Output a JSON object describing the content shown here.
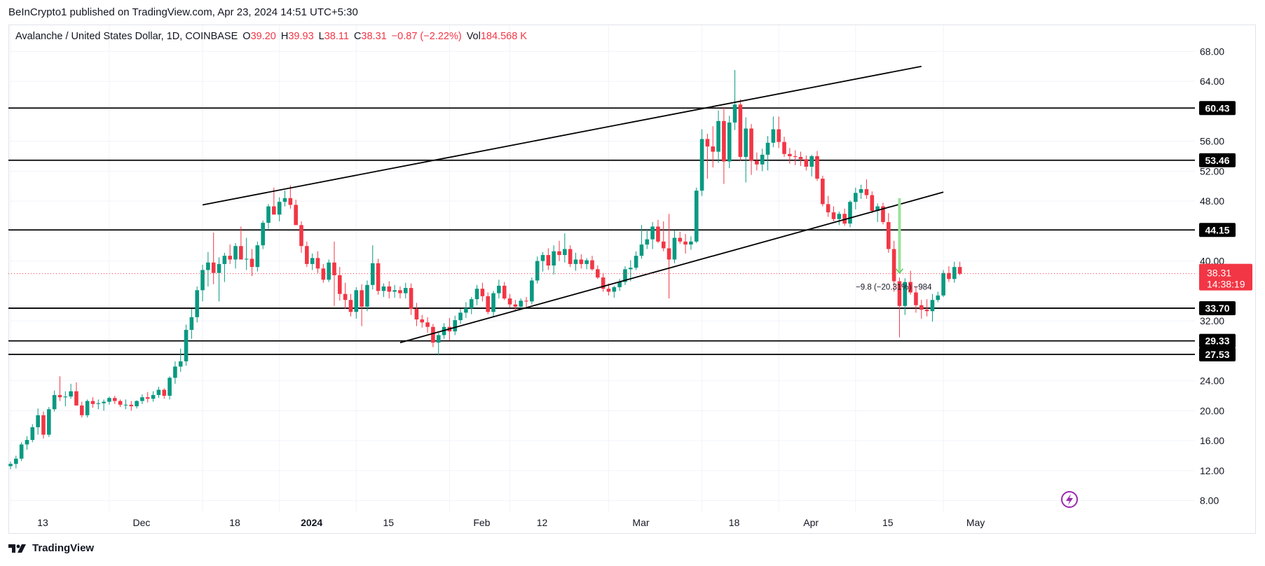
{
  "header": {
    "published": "BeInCrypto1 published on TradingView.com, Apr 23, 2024 14:51 UTC+5:30"
  },
  "legend": {
    "symbol": "Avalanche / United States Dollar, 1D, COINBASE",
    "o_label": "O",
    "o_value": "39.20",
    "h_label": "H",
    "h_value": "39.93",
    "l_label": "L",
    "l_value": "38.11",
    "c_label": "C",
    "c_value": "38.31",
    "change": "−0.87 (−2.22%)",
    "vol_label": "Vol",
    "vol_value": "184.568 K"
  },
  "footer": {
    "brand": "TradingView"
  },
  "colors": {
    "up": "#089981",
    "down": "#f23645",
    "grid": "#f0f3fa",
    "level": "#000000",
    "price_line": "#f23645",
    "measure": "#9be39b",
    "icon": "#9c27b0"
  },
  "chart_data": {
    "type": "candlestick",
    "title": "Avalanche / United States Dollar, 1D, COINBASE",
    "ylim": [
      6,
      70
    ],
    "y_ticks": [
      8,
      12,
      16,
      20,
      24,
      32,
      40,
      48,
      52,
      56,
      64,
      68
    ],
    "y_tick_labels": [
      "8.00",
      "12.00",
      "16.00",
      "20.00",
      "24.00",
      "32.00",
      "40.00",
      "48.00",
      "52.00",
      "56.00",
      "64.00",
      "68.00"
    ],
    "x_ticks": [
      {
        "label": "13",
        "day": 0,
        "bold": false
      },
      {
        "label": "Dec",
        "day": 18,
        "bold": false
      },
      {
        "label": "18",
        "day": 35,
        "bold": false
      },
      {
        "label": "2024",
        "day": 49,
        "bold": true
      },
      {
        "label": "15",
        "day": 63,
        "bold": false
      },
      {
        "label": "Feb",
        "day": 80,
        "bold": false
      },
      {
        "label": "12",
        "day": 91,
        "bold": false
      },
      {
        "label": "Mar",
        "day": 109,
        "bold": false
      },
      {
        "label": "18",
        "day": 126,
        "bold": false
      },
      {
        "label": "Apr",
        "day": 140,
        "bold": false
      },
      {
        "label": "15",
        "day": 154,
        "bold": false
      },
      {
        "label": "May",
        "day": 170,
        "bold": false
      }
    ],
    "horizontal_levels": [
      {
        "value": 60.43,
        "label": "60.43"
      },
      {
        "value": 53.46,
        "label": "53.46"
      },
      {
        "value": 44.15,
        "label": "44.15"
      },
      {
        "value": 33.7,
        "label": "33.70"
      },
      {
        "value": 29.33,
        "label": "29.33"
      },
      {
        "value": 27.53,
        "label": "27.53"
      }
    ],
    "trendlines": [
      {
        "name": "upper-channel-line",
        "start": {
          "day": 35,
          "price": 47.5
        },
        "end": {
          "day": 166,
          "price": 66.0
        }
      },
      {
        "name": "lower-channel-line",
        "start": {
          "day": 71,
          "price": 29.1
        },
        "end": {
          "day": 170,
          "price": 49.2
        }
      }
    ],
    "last_price": {
      "value": 38.31,
      "label": "38.31",
      "countdown": "14:38:19"
    },
    "measure": {
      "day": 162,
      "from": 48.4,
      "to": 38.4,
      "label": "−9.8 (−20.31%) −984"
    },
    "candles": [
      {
        "o": 12.6,
        "h": 13.2,
        "l": 12.2,
        "c": 12.9
      },
      {
        "o": 12.9,
        "h": 14.0,
        "l": 12.3,
        "c": 13.6
      },
      {
        "o": 13.6,
        "h": 15.8,
        "l": 13.3,
        "c": 15.5
      },
      {
        "o": 15.5,
        "h": 16.6,
        "l": 14.8,
        "c": 16.1
      },
      {
        "o": 16.1,
        "h": 18.2,
        "l": 15.8,
        "c": 17.8
      },
      {
        "o": 17.8,
        "h": 20.3,
        "l": 16.8,
        "c": 19.4
      },
      {
        "o": 19.4,
        "h": 19.9,
        "l": 16.3,
        "c": 16.8
      },
      {
        "o": 16.8,
        "h": 20.5,
        "l": 16.5,
        "c": 20.2
      },
      {
        "o": 20.2,
        "h": 22.7,
        "l": 19.9,
        "c": 22.1
      },
      {
        "o": 22.1,
        "h": 24.6,
        "l": 21.3,
        "c": 21.8
      },
      {
        "o": 21.8,
        "h": 22.6,
        "l": 20.6,
        "c": 21.9
      },
      {
        "o": 21.9,
        "h": 23.6,
        "l": 21.6,
        "c": 22.6
      },
      {
        "o": 22.6,
        "h": 23.8,
        "l": 21.2,
        "c": 20.7
      },
      {
        "o": 20.7,
        "h": 21.2,
        "l": 19.1,
        "c": 19.4
      },
      {
        "o": 19.4,
        "h": 21.5,
        "l": 19.1,
        "c": 21.3
      },
      {
        "o": 21.3,
        "h": 21.8,
        "l": 20.4,
        "c": 20.9
      },
      {
        "o": 20.9,
        "h": 21.5,
        "l": 20.2,
        "c": 21.0
      },
      {
        "o": 21.0,
        "h": 21.5,
        "l": 20.0,
        "c": 21.2
      },
      {
        "o": 21.2,
        "h": 21.9,
        "l": 20.8,
        "c": 21.7
      },
      {
        "o": 21.7,
        "h": 22.0,
        "l": 20.9,
        "c": 21.3
      },
      {
        "o": 21.3,
        "h": 21.5,
        "l": 20.5,
        "c": 20.8
      },
      {
        "o": 20.8,
        "h": 21.5,
        "l": 20.2,
        "c": 20.8
      },
      {
        "o": 20.8,
        "h": 21.3,
        "l": 20.0,
        "c": 20.6
      },
      {
        "o": 20.6,
        "h": 21.4,
        "l": 20.3,
        "c": 21.3
      },
      {
        "o": 21.3,
        "h": 22.2,
        "l": 20.9,
        "c": 21.8
      },
      {
        "o": 21.8,
        "h": 22.5,
        "l": 21.1,
        "c": 21.6
      },
      {
        "o": 21.6,
        "h": 22.6,
        "l": 21.2,
        "c": 22.1
      },
      {
        "o": 22.1,
        "h": 23.2,
        "l": 21.7,
        "c": 22.8
      },
      {
        "o": 22.8,
        "h": 23.0,
        "l": 21.6,
        "c": 22.0
      },
      {
        "o": 22.0,
        "h": 24.6,
        "l": 21.5,
        "c": 24.4
      },
      {
        "o": 24.4,
        "h": 26.6,
        "l": 23.6,
        "c": 25.9
      },
      {
        "o": 25.9,
        "h": 28.3,
        "l": 25.2,
        "c": 26.6
      },
      {
        "o": 26.6,
        "h": 31.5,
        "l": 26.0,
        "c": 30.8
      },
      {
        "o": 30.8,
        "h": 33.6,
        "l": 29.6,
        "c": 32.5
      },
      {
        "o": 32.5,
        "h": 36.6,
        "l": 31.8,
        "c": 36.1
      },
      {
        "o": 36.1,
        "h": 39.5,
        "l": 34.6,
        "c": 38.8
      },
      {
        "o": 38.8,
        "h": 41.2,
        "l": 36.6,
        "c": 39.8
      },
      {
        "o": 39.8,
        "h": 43.8,
        "l": 36.9,
        "c": 38.4
      },
      {
        "o": 38.4,
        "h": 40.5,
        "l": 34.6,
        "c": 39.6
      },
      {
        "o": 39.6,
        "h": 41.1,
        "l": 37.2,
        "c": 40.7
      },
      {
        "o": 40.7,
        "h": 42.2,
        "l": 39.6,
        "c": 40.2
      },
      {
        "o": 40.2,
        "h": 42.4,
        "l": 39.0,
        "c": 42.0
      },
      {
        "o": 42.0,
        "h": 44.6,
        "l": 40.7,
        "c": 40.2
      },
      {
        "o": 40.2,
        "h": 43.1,
        "l": 38.8,
        "c": 40.3
      },
      {
        "o": 40.3,
        "h": 41.6,
        "l": 38.0,
        "c": 39.2
      },
      {
        "o": 39.2,
        "h": 42.6,
        "l": 38.6,
        "c": 42.1
      },
      {
        "o": 42.1,
        "h": 45.4,
        "l": 41.6,
        "c": 45.1
      },
      {
        "o": 45.1,
        "h": 47.6,
        "l": 44.3,
        "c": 47.3
      },
      {
        "o": 47.3,
        "h": 49.8,
        "l": 46.6,
        "c": 46.2
      },
      {
        "o": 46.2,
        "h": 48.5,
        "l": 45.3,
        "c": 47.9
      },
      {
        "o": 47.9,
        "h": 49.4,
        "l": 47.3,
        "c": 48.4
      },
      {
        "o": 48.4,
        "h": 50.1,
        "l": 47.0,
        "c": 47.5
      },
      {
        "o": 47.5,
        "h": 48.2,
        "l": 45.0,
        "c": 44.8
      },
      {
        "o": 44.8,
        "h": 45.3,
        "l": 41.1,
        "c": 42.0
      },
      {
        "o": 42.0,
        "h": 42.6,
        "l": 39.2,
        "c": 39.6
      },
      {
        "o": 39.6,
        "h": 41.0,
        "l": 38.8,
        "c": 40.4
      },
      {
        "o": 40.4,
        "h": 41.3,
        "l": 38.4,
        "c": 39.0
      },
      {
        "o": 39.0,
        "h": 39.6,
        "l": 37.1,
        "c": 37.5
      },
      {
        "o": 37.5,
        "h": 40.2,
        "l": 37.2,
        "c": 39.8
      },
      {
        "o": 39.8,
        "h": 42.6,
        "l": 34.0,
        "c": 38.1
      },
      {
        "o": 38.1,
        "h": 39.2,
        "l": 34.7,
        "c": 35.6
      },
      {
        "o": 35.6,
        "h": 37.1,
        "l": 33.6,
        "c": 34.8
      },
      {
        "o": 34.8,
        "h": 35.6,
        "l": 32.6,
        "c": 33.2
      },
      {
        "o": 33.2,
        "h": 36.5,
        "l": 32.3,
        "c": 36.1
      },
      {
        "o": 36.1,
        "h": 36.9,
        "l": 31.3,
        "c": 33.9
      },
      {
        "o": 33.9,
        "h": 37.4,
        "l": 33.3,
        "c": 36.8
      },
      {
        "o": 36.8,
        "h": 42.1,
        "l": 36.2,
        "c": 39.7
      },
      {
        "o": 39.7,
        "h": 40.3,
        "l": 35.5,
        "c": 36.0
      },
      {
        "o": 36.0,
        "h": 37.0,
        "l": 35.2,
        "c": 36.6
      },
      {
        "o": 36.6,
        "h": 37.3,
        "l": 35.0,
        "c": 35.9
      },
      {
        "o": 35.9,
        "h": 36.8,
        "l": 35.1,
        "c": 36.1
      },
      {
        "o": 36.1,
        "h": 36.6,
        "l": 35.0,
        "c": 35.7
      },
      {
        "o": 35.7,
        "h": 37.1,
        "l": 35.0,
        "c": 36.4
      },
      {
        "o": 36.4,
        "h": 37.0,
        "l": 32.8,
        "c": 33.6
      },
      {
        "o": 33.6,
        "h": 34.4,
        "l": 31.3,
        "c": 32.2
      },
      {
        "o": 32.2,
        "h": 32.8,
        "l": 31.1,
        "c": 31.8
      },
      {
        "o": 31.8,
        "h": 32.5,
        "l": 30.4,
        "c": 31.2
      },
      {
        "o": 31.2,
        "h": 31.6,
        "l": 28.5,
        "c": 29.1
      },
      {
        "o": 29.1,
        "h": 30.4,
        "l": 27.4,
        "c": 30.1
      },
      {
        "o": 30.1,
        "h": 31.7,
        "l": 29.6,
        "c": 31.2
      },
      {
        "o": 31.2,
        "h": 32.4,
        "l": 29.4,
        "c": 30.6
      },
      {
        "o": 30.6,
        "h": 32.7,
        "l": 30.1,
        "c": 32.1
      },
      {
        "o": 32.1,
        "h": 33.6,
        "l": 31.6,
        "c": 33.1
      },
      {
        "o": 33.1,
        "h": 34.5,
        "l": 32.4,
        "c": 33.7
      },
      {
        "o": 33.7,
        "h": 35.2,
        "l": 32.9,
        "c": 34.9
      },
      {
        "o": 34.9,
        "h": 36.8,
        "l": 34.1,
        "c": 36.3
      },
      {
        "o": 36.3,
        "h": 37.1,
        "l": 34.6,
        "c": 35.3
      },
      {
        "o": 35.3,
        "h": 35.8,
        "l": 32.9,
        "c": 33.2
      },
      {
        "o": 33.2,
        "h": 36.0,
        "l": 32.5,
        "c": 35.7
      },
      {
        "o": 35.7,
        "h": 37.5,
        "l": 35.0,
        "c": 36.7
      },
      {
        "o": 36.7,
        "h": 37.2,
        "l": 34.8,
        "c": 35.0
      },
      {
        "o": 35.0,
        "h": 35.6,
        "l": 33.8,
        "c": 34.2
      },
      {
        "o": 34.2,
        "h": 34.8,
        "l": 33.3,
        "c": 33.9
      },
      {
        "o": 33.9,
        "h": 35.0,
        "l": 33.5,
        "c": 34.7
      },
      {
        "o": 34.7,
        "h": 35.2,
        "l": 33.9,
        "c": 34.6
      },
      {
        "o": 34.6,
        "h": 37.8,
        "l": 34.2,
        "c": 37.4
      },
      {
        "o": 37.4,
        "h": 40.6,
        "l": 37.0,
        "c": 40.0
      },
      {
        "o": 40.0,
        "h": 41.2,
        "l": 38.6,
        "c": 40.8
      },
      {
        "o": 40.8,
        "h": 41.7,
        "l": 38.8,
        "c": 39.4
      },
      {
        "o": 39.4,
        "h": 42.1,
        "l": 38.2,
        "c": 41.3
      },
      {
        "o": 41.3,
        "h": 42.7,
        "l": 40.0,
        "c": 40.8
      },
      {
        "o": 40.8,
        "h": 43.7,
        "l": 39.8,
        "c": 41.6
      },
      {
        "o": 41.6,
        "h": 42.1,
        "l": 39.2,
        "c": 39.6
      },
      {
        "o": 39.6,
        "h": 41.1,
        "l": 38.7,
        "c": 40.2
      },
      {
        "o": 40.2,
        "h": 40.9,
        "l": 39.0,
        "c": 39.6
      },
      {
        "o": 39.6,
        "h": 40.4,
        "l": 38.9,
        "c": 40.1
      },
      {
        "o": 40.1,
        "h": 40.7,
        "l": 38.7,
        "c": 38.9
      },
      {
        "o": 38.9,
        "h": 39.4,
        "l": 37.6,
        "c": 37.8
      },
      {
        "o": 37.8,
        "h": 38.4,
        "l": 35.9,
        "c": 36.3
      },
      {
        "o": 36.3,
        "h": 37.0,
        "l": 35.4,
        "c": 35.9
      },
      {
        "o": 35.9,
        "h": 36.7,
        "l": 35.1,
        "c": 36.5
      },
      {
        "o": 36.5,
        "h": 37.6,
        "l": 36.0,
        "c": 37.2
      },
      {
        "o": 37.2,
        "h": 39.3,
        "l": 36.8,
        "c": 38.9
      },
      {
        "o": 38.9,
        "h": 40.1,
        "l": 37.3,
        "c": 39.1
      },
      {
        "o": 39.1,
        "h": 41.3,
        "l": 38.8,
        "c": 40.7
      },
      {
        "o": 40.7,
        "h": 44.8,
        "l": 40.3,
        "c": 42.2
      },
      {
        "o": 42.2,
        "h": 44.3,
        "l": 41.6,
        "c": 42.9
      },
      {
        "o": 42.9,
        "h": 45.2,
        "l": 41.6,
        "c": 44.6
      },
      {
        "o": 44.6,
        "h": 45.5,
        "l": 42.4,
        "c": 42.6
      },
      {
        "o": 42.6,
        "h": 45.3,
        "l": 41.3,
        "c": 41.7
      },
      {
        "o": 41.7,
        "h": 46.3,
        "l": 35.0,
        "c": 40.2
      },
      {
        "o": 40.2,
        "h": 44.1,
        "l": 39.7,
        "c": 43.1
      },
      {
        "o": 43.1,
        "h": 43.9,
        "l": 42.3,
        "c": 42.6
      },
      {
        "o": 42.6,
        "h": 43.6,
        "l": 41.0,
        "c": 42.2
      },
      {
        "o": 42.2,
        "h": 43.3,
        "l": 41.5,
        "c": 42.6
      },
      {
        "o": 42.6,
        "h": 49.8,
        "l": 42.4,
        "c": 49.4
      },
      {
        "o": 49.4,
        "h": 57.6,
        "l": 48.7,
        "c": 56.3
      },
      {
        "o": 56.3,
        "h": 57.0,
        "l": 51.0,
        "c": 55.3
      },
      {
        "o": 55.3,
        "h": 58.0,
        "l": 52.5,
        "c": 54.6
      },
      {
        "o": 54.6,
        "h": 60.1,
        "l": 53.1,
        "c": 58.7
      },
      {
        "o": 58.7,
        "h": 60.6,
        "l": 50.3,
        "c": 53.3
      },
      {
        "o": 53.3,
        "h": 59.4,
        "l": 52.4,
        "c": 58.5
      },
      {
        "o": 58.5,
        "h": 65.5,
        "l": 57.5,
        "c": 60.9
      },
      {
        "o": 60.9,
        "h": 61.6,
        "l": 53.4,
        "c": 53.9
      },
      {
        "o": 53.9,
        "h": 59.2,
        "l": 50.5,
        "c": 57.7
      },
      {
        "o": 57.7,
        "h": 58.3,
        "l": 51.5,
        "c": 53.4
      },
      {
        "o": 53.4,
        "h": 54.5,
        "l": 52.1,
        "c": 52.9
      },
      {
        "o": 52.9,
        "h": 55.0,
        "l": 52.0,
        "c": 54.2
      },
      {
        "o": 54.2,
        "h": 56.7,
        "l": 52.1,
        "c": 55.8
      },
      {
        "o": 55.8,
        "h": 59.3,
        "l": 55.2,
        "c": 57.6
      },
      {
        "o": 57.6,
        "h": 59.3,
        "l": 55.1,
        "c": 55.9
      },
      {
        "o": 55.9,
        "h": 56.6,
        "l": 53.9,
        "c": 54.3
      },
      {
        "o": 54.3,
        "h": 55.1,
        "l": 53.0,
        "c": 54.0
      },
      {
        "o": 54.0,
        "h": 54.8,
        "l": 52.8,
        "c": 53.9
      },
      {
        "o": 53.9,
        "h": 54.6,
        "l": 52.7,
        "c": 53.6
      },
      {
        "o": 53.6,
        "h": 54.1,
        "l": 52.1,
        "c": 52.6
      },
      {
        "o": 52.6,
        "h": 54.2,
        "l": 51.3,
        "c": 54.0
      },
      {
        "o": 54.0,
        "h": 54.7,
        "l": 50.7,
        "c": 51.0
      },
      {
        "o": 51.0,
        "h": 51.4,
        "l": 47.3,
        "c": 47.6
      },
      {
        "o": 47.6,
        "h": 48.7,
        "l": 45.9,
        "c": 46.5
      },
      {
        "o": 46.5,
        "h": 47.3,
        "l": 45.3,
        "c": 45.6
      },
      {
        "o": 45.6,
        "h": 46.6,
        "l": 44.8,
        "c": 46.3
      },
      {
        "o": 46.3,
        "h": 47.0,
        "l": 44.7,
        "c": 45.0
      },
      {
        "o": 45.0,
        "h": 48.1,
        "l": 44.5,
        "c": 47.9
      },
      {
        "o": 47.9,
        "h": 49.8,
        "l": 46.9,
        "c": 49.1
      },
      {
        "o": 49.1,
        "h": 50.2,
        "l": 48.3,
        "c": 49.6
      },
      {
        "o": 49.6,
        "h": 50.9,
        "l": 48.3,
        "c": 48.8
      },
      {
        "o": 48.8,
        "h": 49.3,
        "l": 46.4,
        "c": 46.7
      },
      {
        "o": 46.7,
        "h": 47.7,
        "l": 45.2,
        "c": 47.3
      },
      {
        "o": 47.3,
        "h": 47.8,
        "l": 44.9,
        "c": 45.2
      },
      {
        "o": 45.2,
        "h": 46.4,
        "l": 41.1,
        "c": 41.6
      },
      {
        "o": 41.6,
        "h": 42.7,
        "l": 35.9,
        "c": 37.3
      },
      {
        "o": 37.3,
        "h": 37.8,
        "l": 29.8,
        "c": 34.0
      },
      {
        "o": 34.0,
        "h": 37.7,
        "l": 32.8,
        "c": 37.2
      },
      {
        "o": 37.2,
        "h": 38.7,
        "l": 35.5,
        "c": 35.8
      },
      {
        "o": 35.8,
        "h": 36.6,
        "l": 33.1,
        "c": 34.1
      },
      {
        "o": 34.1,
        "h": 34.8,
        "l": 32.3,
        "c": 33.5
      },
      {
        "o": 33.5,
        "h": 34.9,
        "l": 32.6,
        "c": 33.3
      },
      {
        "o": 33.3,
        "h": 35.6,
        "l": 31.9,
        "c": 34.8
      },
      {
        "o": 34.8,
        "h": 35.9,
        "l": 34.5,
        "c": 35.4
      },
      {
        "o": 35.4,
        "h": 38.8,
        "l": 35.2,
        "c": 38.4
      },
      {
        "o": 38.4,
        "h": 39.3,
        "l": 37.2,
        "c": 37.6
      },
      {
        "o": 37.6,
        "h": 39.9,
        "l": 37.1,
        "c": 39.2
      },
      {
        "o": 39.2,
        "h": 39.9,
        "l": 38.1,
        "c": 38.3
      }
    ]
  }
}
